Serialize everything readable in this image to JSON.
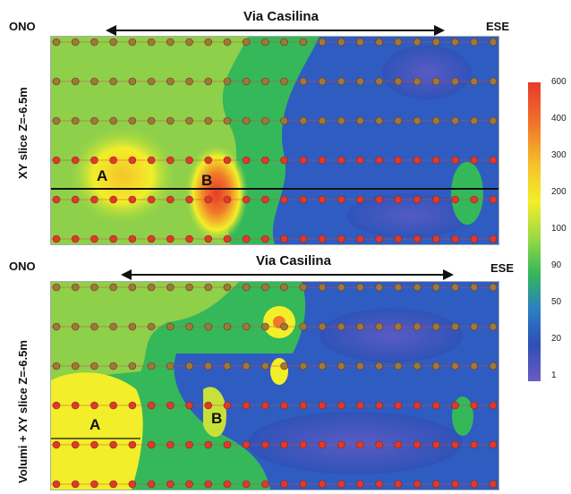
{
  "top_panel": {
    "left_label": "ONO",
    "right_label": "ESE",
    "road_label": "Via Casilina",
    "side_label": "XY slice Z=-6.5m",
    "zone_a": "A",
    "zone_b": "B"
  },
  "bottom_panel": {
    "left_label": "ONO",
    "right_label": "ESE",
    "road_label": "Via Casilina",
    "side_label": "Volumi + XY slice Z=-6.5m",
    "zone_a": "A",
    "zone_b": "B"
  },
  "colorbar": {
    "ticks": [
      "600",
      "400",
      "300",
      "200",
      "100",
      "90",
      "50",
      "20",
      "1"
    ],
    "colors": [
      "#e8392a",
      "#f07a2a",
      "#f5c32a",
      "#f3ee2a",
      "#9bd944",
      "#35b85a",
      "#2a7fc4",
      "#2f4fb5",
      "#6b5bc4"
    ]
  }
}
